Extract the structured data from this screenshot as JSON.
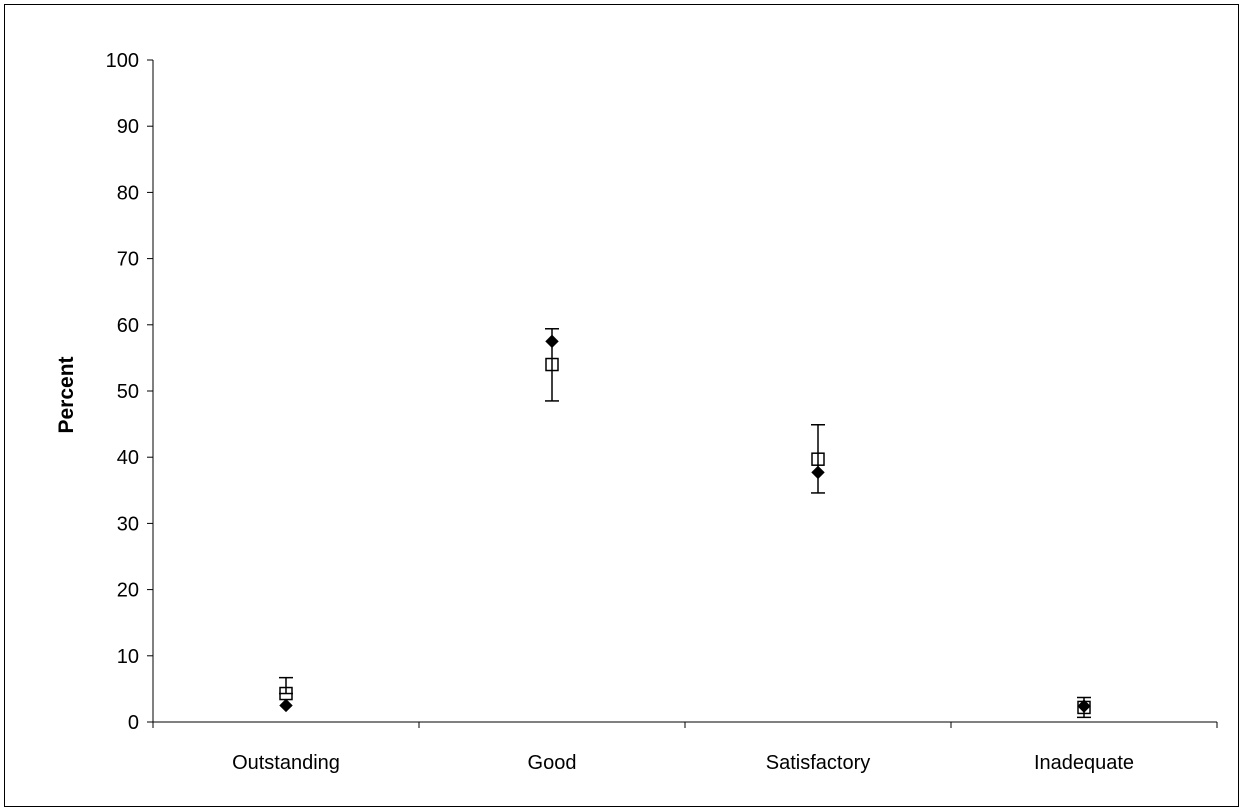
{
  "chart_data": {
    "type": "scatter",
    "title": "",
    "xlabel": "",
    "ylabel": "Percent",
    "ylim": [
      0,
      100
    ],
    "yticks": [
      0,
      10,
      20,
      30,
      40,
      50,
      60,
      70,
      80,
      90,
      100
    ],
    "categories": [
      "Outstanding",
      "Good",
      "Satisfactory",
      "Inadequate"
    ],
    "grid": false,
    "legend": "none",
    "series": [
      {
        "marker": "filled-diamond",
        "color": "#000000",
        "values": [
          2.5,
          57.5,
          37.7,
          2.4
        ]
      },
      {
        "marker": "open-square",
        "color": "#000000",
        "values": [
          4.3,
          54.0,
          39.7,
          2.2
        ],
        "error_low": [
          4.3,
          48.5,
          34.6,
          0.7
        ],
        "error_high": [
          6.7,
          59.4,
          44.9,
          3.7
        ]
      }
    ]
  }
}
